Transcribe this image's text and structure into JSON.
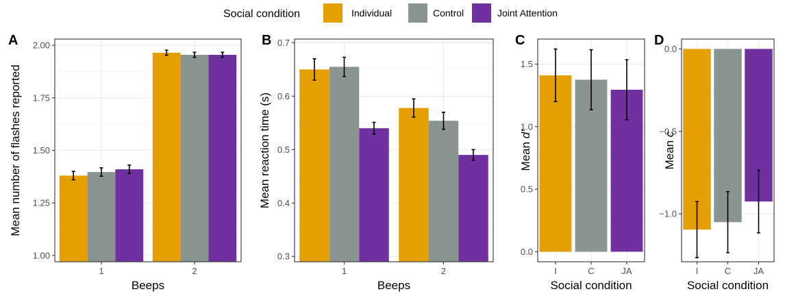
{
  "legend": {
    "title": "Social condition",
    "items": [
      {
        "label": "Individual",
        "color": "#E69F00"
      },
      {
        "label": "Control",
        "color": "#8A9490"
      },
      {
        "label": "Joint Attention",
        "color": "#7030A0"
      }
    ]
  },
  "chart_data": [
    {
      "panel": "A",
      "type": "bar",
      "xlabel": "Beeps",
      "ylabel": "Mean number of flashes reported",
      "ylim": [
        0.97,
        2.03
      ],
      "yticks": [
        "1.00",
        "1.25",
        "1.50",
        "1.75",
        "2.00"
      ],
      "categories": [
        "1",
        "2"
      ],
      "grid": true,
      "series": [
        {
          "name": "Individual",
          "values": [
            1.38,
            1.965
          ],
          "err": [
            0.02,
            0.012
          ]
        },
        {
          "name": "Control",
          "values": [
            1.397,
            1.955
          ],
          "err": [
            0.02,
            0.012
          ]
        },
        {
          "name": "Joint Attention",
          "values": [
            1.41,
            1.955
          ],
          "err": [
            0.02,
            0.012
          ]
        }
      ]
    },
    {
      "panel": "B",
      "type": "bar",
      "xlabel": "Beeps",
      "ylabel": "Mean reaction time (s)",
      "ylim": [
        0.29,
        0.707
      ],
      "yticks": [
        "0.3",
        "0.4",
        "0.5",
        "0.6",
        "0.7"
      ],
      "categories": [
        "1",
        "2"
      ],
      "grid": true,
      "series": [
        {
          "name": "Individual",
          "values": [
            0.65,
            0.578
          ],
          "err": [
            0.02,
            0.017
          ]
        },
        {
          "name": "Control",
          "values": [
            0.655,
            0.554
          ],
          "err": [
            0.018,
            0.016
          ]
        },
        {
          "name": "Joint Attention",
          "values": [
            0.54,
            0.49
          ],
          "err": [
            0.011,
            0.01
          ]
        }
      ]
    },
    {
      "panel": "C",
      "type": "bar",
      "xlabel": "Social condition",
      "ylabel_prefix": "Mean ",
      "ylabel_symbol": "d′",
      "ylim": [
        -0.08,
        1.7
      ],
      "yticks": [
        "0.0",
        "0.5",
        "1.0",
        "1.5"
      ],
      "categories": [
        "I",
        "C",
        "JA"
      ],
      "grid": true,
      "values": [
        1.41,
        1.375,
        1.295
      ],
      "err": [
        0.21,
        0.24,
        0.24
      ]
    },
    {
      "panel": "D",
      "type": "bar",
      "xlabel": "Social condition",
      "ylabel_prefix": "Mean ",
      "ylabel_symbol": "c",
      "ylim": [
        -1.29,
        0.06
      ],
      "yticks": [
        "0.0",
        "-0.5",
        "-1.0"
      ],
      "categories": [
        "I",
        "C",
        "JA"
      ],
      "grid": true,
      "values": [
        -1.095,
        -1.05,
        -0.925
      ],
      "err": [
        0.17,
        0.185,
        0.19
      ]
    }
  ]
}
